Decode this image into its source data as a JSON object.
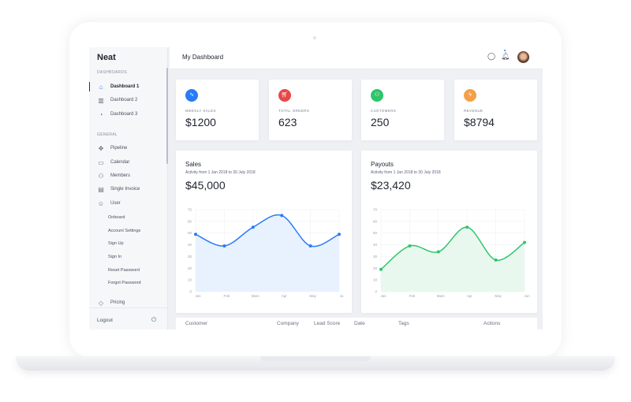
{
  "app": {
    "brand": "Neat",
    "title": "My Dashboard"
  },
  "sidebar": {
    "sections": [
      "DASHBOARDS",
      "GENERAL"
    ],
    "dashboards": [
      {
        "label": "Dashboard 1",
        "icon": "home-icon"
      },
      {
        "label": "Dashboard 2",
        "icon": "bar-chart-icon"
      },
      {
        "label": "Dashboard 3",
        "icon": "pie-chart-icon"
      }
    ],
    "general": [
      {
        "label": "Pipeline",
        "icon": "move-icon"
      },
      {
        "label": "Calendar",
        "icon": "calendar-icon"
      },
      {
        "label": "Members",
        "icon": "users-icon"
      },
      {
        "label": "Single Invoice",
        "icon": "file-icon"
      },
      {
        "label": "User",
        "icon": "user-icon"
      }
    ],
    "user_sub": [
      "Onboard",
      "Account Settings",
      "Sign Up",
      "Sign In",
      "Reset Password",
      "Forgot Password"
    ],
    "pricing": "Pricing",
    "logout": "Logout"
  },
  "stats": [
    {
      "label": "WEEKLY SALES",
      "value": "$1200",
      "color": "#2a7cf6",
      "icon": "activity-icon"
    },
    {
      "label": "TOTAL ORDERS",
      "value": "623",
      "color": "#e84848",
      "icon": "cart-icon"
    },
    {
      "label": "CUSTOMERS",
      "value": "250",
      "color": "#2ec56b",
      "icon": "users-icon"
    },
    {
      "label": "REVENUE",
      "value": "$8794",
      "color": "#f4a04a",
      "icon": "zap-icon"
    }
  ],
  "chart_data": [
    {
      "type": "area",
      "title": "Sales",
      "subtitle": "Activity from 1 Jan 2018 to 30 July 2018",
      "total": "$45,000",
      "categories": [
        "Jan",
        "Feb",
        "Mars",
        "Apr",
        "May",
        "Ju"
      ],
      "values": [
        49,
        39,
        55,
        65,
        39,
        49
      ],
      "ylim": [
        0,
        70
      ],
      "yticks": [
        0,
        10,
        20,
        30,
        40,
        50,
        60,
        70
      ],
      "grid": true,
      "color": "#2a7cf6",
      "fill": "#e8f2fe"
    },
    {
      "type": "area",
      "title": "Payouts",
      "subtitle": "Activity from 1 Jan 2018 to 30 July 2018",
      "total": "$23,420",
      "categories": [
        "Jan",
        "Feb",
        "Mars",
        "Apr",
        "May",
        "Jun"
      ],
      "values": [
        19,
        39,
        34,
        55,
        27,
        42
      ],
      "ylim": [
        0,
        70
      ],
      "yticks": [
        0,
        10,
        20,
        30,
        40,
        50,
        60,
        70
      ],
      "grid": true,
      "color": "#2ec56b",
      "fill": "#e8f8ee"
    }
  ],
  "table": {
    "headers": [
      "Customer",
      "Company",
      "Lead Score",
      "Date",
      "Tags",
      "Actions"
    ]
  }
}
